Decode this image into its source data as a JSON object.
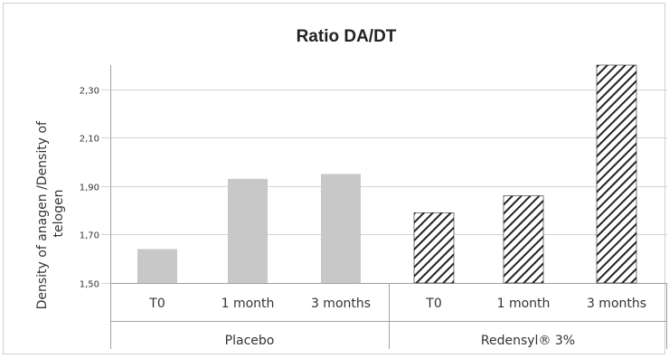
{
  "chart_data": {
    "type": "bar",
    "title": "Ratio DA/DT",
    "ylabel_lines": [
      "Density of anagen /Density of",
      "telogen"
    ],
    "ylim": [
      1.5,
      2.4
    ],
    "yticks": [
      1.5,
      1.7,
      1.9,
      2.1,
      2.3
    ],
    "ytick_labels": [
      "1,50",
      "1,70",
      "1,90",
      "2,10",
      "2,30"
    ],
    "grid": true,
    "groups": [
      {
        "name": "Placebo",
        "pattern": "solid",
        "color": "#c8c8c8",
        "categories": [
          "T0",
          "1 month",
          "3 months"
        ],
        "values": [
          1.64,
          1.93,
          1.95
        ]
      },
      {
        "name": "Redensyl® 3%",
        "pattern": "hatched",
        "color": "#222222",
        "categories": [
          "T0",
          "1 month",
          "3 months"
        ],
        "values": [
          1.79,
          1.86,
          2.4
        ]
      }
    ]
  }
}
